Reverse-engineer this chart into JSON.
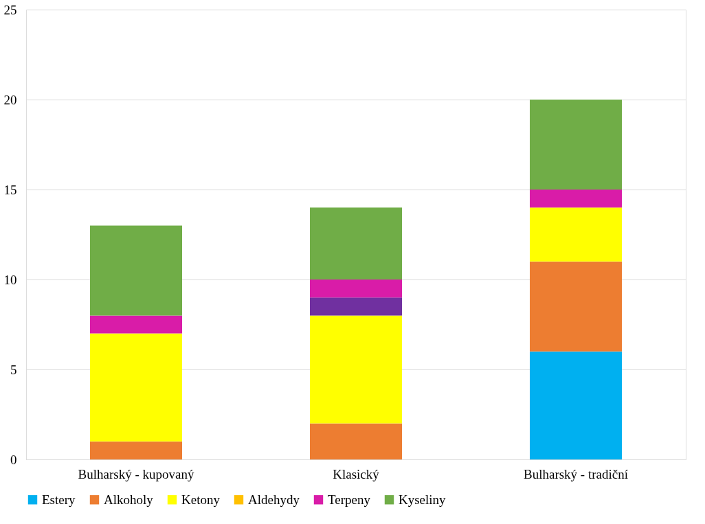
{
  "chart_data": {
    "type": "bar",
    "stacked": true,
    "categories": [
      "Bulharský - kupovaný",
      "Klasický",
      "Bulharský - tradiční"
    ],
    "series": [
      {
        "name": "Estery",
        "color": "#00b0f0",
        "values": [
          0,
          0,
          6
        ]
      },
      {
        "name": "Alkoholy",
        "color": "#ed7d31",
        "values": [
          1,
          2,
          5
        ]
      },
      {
        "name": "Ketony",
        "color": "#ffff00",
        "values": [
          6,
          6,
          3
        ]
      },
      {
        "name": "Aldehydy",
        "color": "#ffc000",
        "values": [
          0,
          0,
          0
        ]
      },
      {
        "color": "#7030a0",
        "values": [
          0,
          1,
          0
        ]
      },
      {
        "name": "Terpeny",
        "color": "#d91ca8",
        "values": [
          1,
          1,
          1
        ]
      },
      {
        "name": "Kyseliny",
        "color": "#70ad47",
        "values": [
          5,
          4,
          5
        ]
      }
    ],
    "ylim": [
      0,
      25
    ],
    "yticks": [
      0,
      5,
      10,
      15,
      20,
      25
    ],
    "grid": "y",
    "legend": "bottom"
  }
}
